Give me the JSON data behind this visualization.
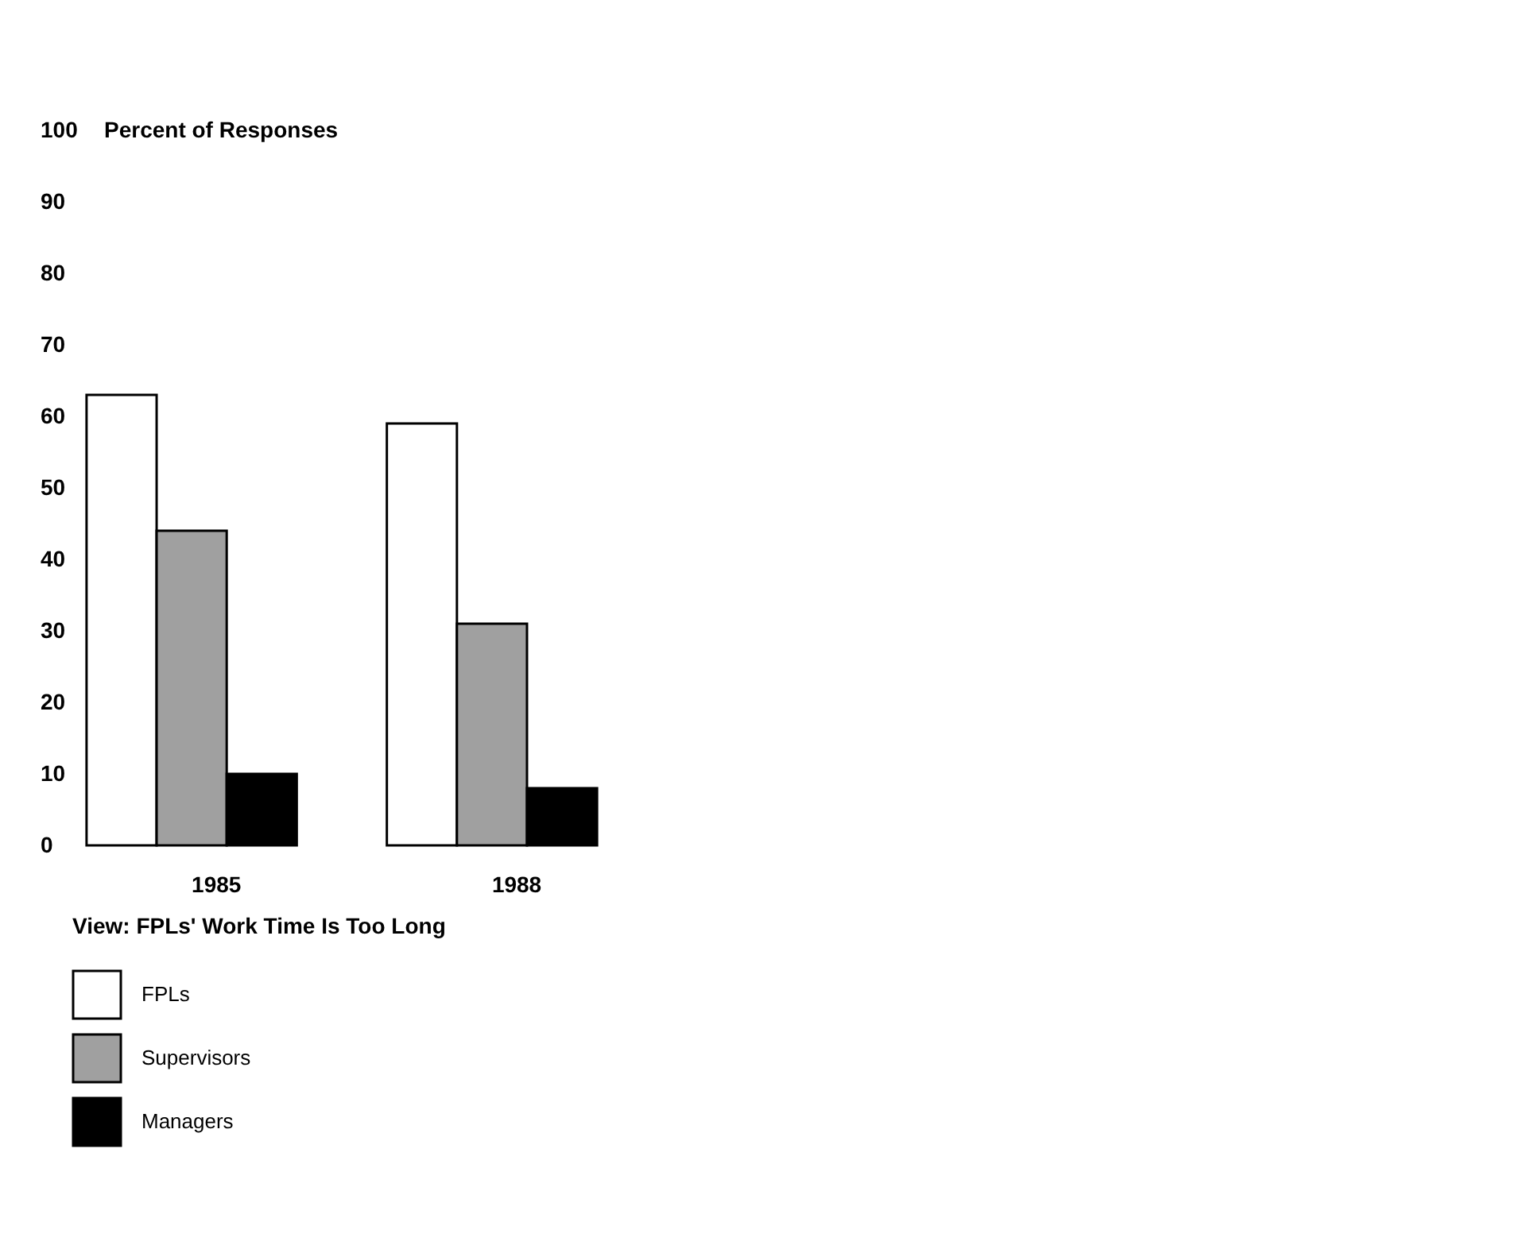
{
  "chart_data": {
    "type": "bar",
    "xlabel": "View: FPLs' Work Time Is Too Long",
    "ylabel": "Percent of Responses",
    "categories": [
      "1985",
      "1988"
    ],
    "series": [
      {
        "name": "FPLs",
        "color": "#ffffff",
        "values": [
          63,
          59
        ]
      },
      {
        "name": "Supervisors",
        "color": "#a0a0a0",
        "values": [
          44,
          31
        ]
      },
      {
        "name": "Managers",
        "color": "#000000",
        "values": [
          10,
          8
        ]
      }
    ],
    "ylim": [
      0,
      100
    ],
    "yticks": [
      0,
      10,
      20,
      30,
      40,
      50,
      60,
      70,
      80,
      90,
      100
    ],
    "legend": "bottom"
  }
}
